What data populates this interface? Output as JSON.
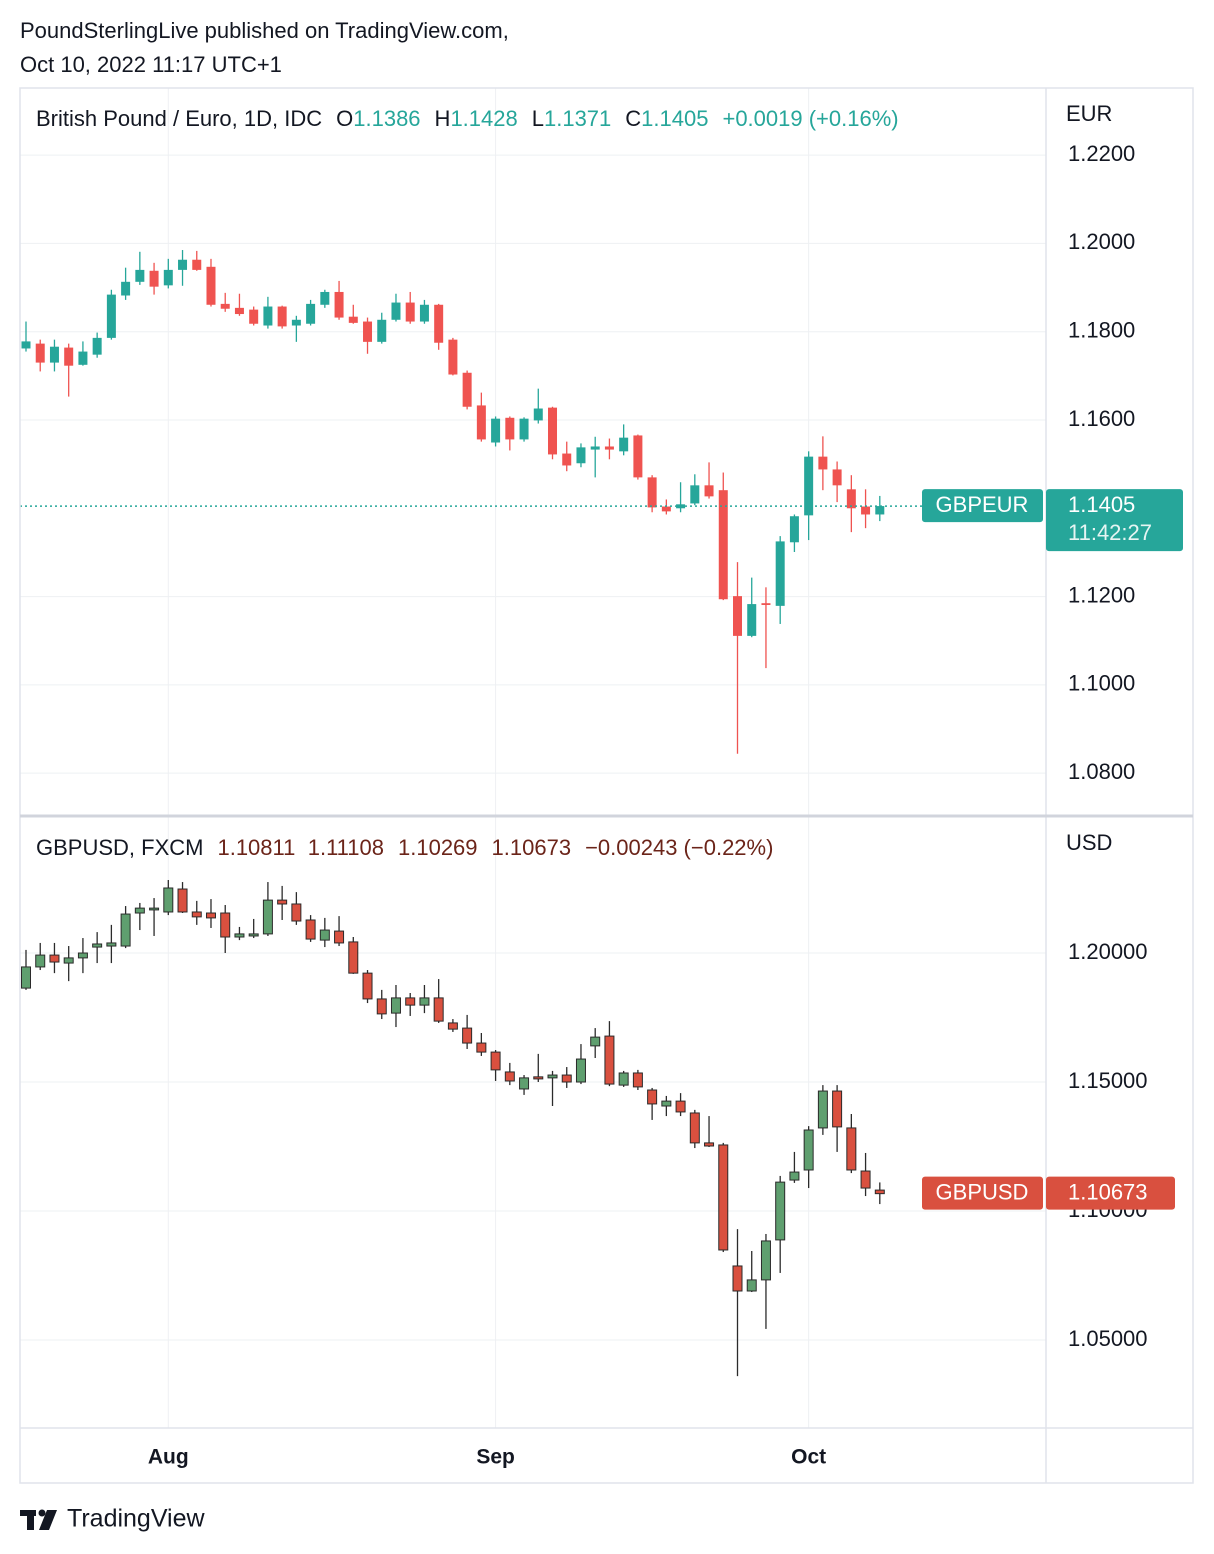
{
  "header": {
    "line1": "PoundSterlingLive published on TradingView.com,",
    "line2": "Oct 10, 2022 11:17 UTC+1"
  },
  "chart_data": [
    {
      "type": "candlestick",
      "title": "British Pound / Euro, 1D, IDC",
      "ohlc_labels": [
        "O",
        "H",
        "L",
        "C"
      ],
      "change": "+0.0019 (+0.16%)",
      "currency": "EUR",
      "symbol": "GBPEUR",
      "countdown": "11:42:27",
      "price_line": true,
      "up_color": "#26a69a",
      "down_color": "#ef5350",
      "legend_color": "#26a69a",
      "grid": true,
      "categories": [
        null,
        null,
        null,
        null,
        null,
        null,
        null,
        null,
        null,
        null,
        "Aug",
        null,
        null,
        null,
        null,
        null,
        null,
        null,
        null,
        null,
        null,
        null,
        null,
        null,
        null,
        null,
        null,
        null,
        null,
        null,
        null,
        null,
        null,
        "Sep",
        null,
        null,
        null,
        null,
        null,
        null,
        null,
        null,
        null,
        null,
        null,
        null,
        null,
        null,
        null,
        null,
        null,
        null,
        null,
        null,
        null,
        "Oct",
        null,
        null,
        null,
        null,
        null
      ],
      "open": [
        1.1762,
        1.1773,
        1.173,
        1.1764,
        1.1725,
        1.1748,
        1.1786,
        1.1882,
        1.1913,
        1.1938,
        1.1905,
        1.194,
        1.1963,
        1.1947,
        1.1863,
        1.1854,
        1.185,
        1.1814,
        1.1857,
        1.1814,
        1.1818,
        1.1861,
        1.189,
        1.1834,
        1.1823,
        1.1777,
        1.1827,
        1.1866,
        1.1823,
        1.1861,
        1.1782,
        1.1707,
        1.1633,
        1.1549,
        1.1605,
        1.1556,
        1.1599,
        1.1628,
        1.1524,
        1.1502,
        1.1533,
        1.154,
        1.1529,
        1.1565,
        1.147,
        1.1404,
        1.14,
        1.1411,
        1.1452,
        1.1441,
        1.1201,
        1.1111,
        1.1185,
        1.1179,
        1.1323,
        1.1384,
        1.1517,
        1.1488,
        1.1443,
        1.1404,
        1.1386
      ],
      "high": [
        1.1823,
        1.1782,
        1.1782,
        1.1773,
        1.1778,
        1.1798,
        1.1895,
        1.1945,
        1.1981,
        1.1956,
        1.1965,
        1.1985,
        1.1983,
        1.1965,
        1.1888,
        1.1886,
        1.1857,
        1.1879,
        1.1859,
        1.1836,
        1.1872,
        1.1895,
        1.1915,
        1.1861,
        1.1832,
        1.1843,
        1.1886,
        1.189,
        1.1872,
        1.1863,
        1.1786,
        1.1712,
        1.1662,
        1.1608,
        1.1608,
        1.1606,
        1.1671,
        1.163,
        1.1551,
        1.1547,
        1.1562,
        1.1558,
        1.159,
        1.1567,
        1.1475,
        1.142,
        1.1459,
        1.1477,
        1.1504,
        1.1481,
        1.1278,
        1.1243,
        1.1221,
        1.1337,
        1.1386,
        1.1529,
        1.1563,
        1.1506,
        1.1475,
        1.1443,
        1.1428
      ],
      "low": [
        1.1755,
        1.171,
        1.171,
        1.1653,
        1.1723,
        1.1741,
        1.1782,
        1.1872,
        1.1906,
        1.1884,
        1.1898,
        1.1904,
        1.1938,
        1.1857,
        1.1845,
        1.1836,
        1.1814,
        1.1807,
        1.1807,
        1.1777,
        1.1814,
        1.1854,
        1.1827,
        1.1818,
        1.175,
        1.1773,
        1.1823,
        1.1818,
        1.1818,
        1.1759,
        1.1701,
        1.1624,
        1.1551,
        1.154,
        1.1531,
        1.1551,
        1.1592,
        1.1511,
        1.1484,
        1.1493,
        1.147,
        1.1511,
        1.152,
        1.1465,
        1.1391,
        1.1386,
        1.1391,
        1.1407,
        1.1422,
        1.1192,
        1.0844,
        1.1108,
        1.1038,
        1.1138,
        1.1301,
        1.1328,
        1.1441,
        1.1414,
        1.1346,
        1.1355,
        1.1371
      ],
      "close": [
        1.1778,
        1.173,
        1.1766,
        1.1723,
        1.1755,
        1.1786,
        1.1884,
        1.1913,
        1.194,
        1.1902,
        1.194,
        1.1963,
        1.194,
        1.1861,
        1.1852,
        1.184,
        1.1818,
        1.1857,
        1.1812,
        1.1827,
        1.1863,
        1.189,
        1.1832,
        1.182,
        1.1777,
        1.1827,
        1.1866,
        1.1823,
        1.1861,
        1.1775,
        1.1703,
        1.163,
        1.1556,
        1.1603,
        1.1556,
        1.1603,
        1.1626,
        1.1522,
        1.1497,
        1.1538,
        1.154,
        1.1533,
        1.156,
        1.147,
        1.1402,
        1.1393,
        1.1409,
        1.1452,
        1.1427,
        1.1194,
        1.1111,
        1.1183,
        1.1181,
        1.1325,
        1.1382,
        1.1517,
        1.1488,
        1.1452,
        1.14,
        1.1386,
        1.1405
      ],
      "ylim": [
        1.0703,
        1.2352
      ],
      "yticks": [
        {
          "value": 1.08,
          "label": "1.0800"
        },
        {
          "value": 1.1,
          "label": "1.1000"
        },
        {
          "value": 1.12,
          "label": "1.1200"
        },
        {
          "value": 1.16,
          "label": "1.1600"
        },
        {
          "value": 1.18,
          "label": "1.1800"
        },
        {
          "value": 1.2,
          "label": "1.2000"
        },
        {
          "value": 1.22,
          "label": "1.2200"
        }
      ]
    },
    {
      "type": "candlestick",
      "title": "GBPUSD, FXCM",
      "change": "−0.00243 (−0.22%)",
      "currency": "USD",
      "symbol": "GBPUSD",
      "up_color": "#5f9f6f",
      "down_color": "#d9503f",
      "border_color": "#2b2b2b",
      "legend_color": "#6b2419",
      "grid": true,
      "categories": [
        null,
        null,
        null,
        null,
        null,
        null,
        null,
        null,
        null,
        null,
        "Aug",
        null,
        null,
        null,
        null,
        null,
        null,
        null,
        null,
        null,
        null,
        null,
        null,
        null,
        null,
        null,
        null,
        null,
        null,
        null,
        null,
        null,
        null,
        "Sep",
        null,
        null,
        null,
        null,
        null,
        null,
        null,
        null,
        null,
        null,
        null,
        null,
        null,
        null,
        null,
        null,
        null,
        null,
        null,
        null,
        null,
        "Oct",
        null,
        null,
        null,
        null,
        null
      ],
      "open": [
        1.1864,
        1.1946,
        1.1992,
        1.1961,
        1.1981,
        1.2023,
        1.2027,
        1.2027,
        1.2155,
        1.2167,
        1.2159,
        1.2248,
        1.2159,
        1.2155,
        1.2155,
        1.2062,
        1.2066,
        1.2074,
        1.2205,
        1.219,
        1.2128,
        1.205,
        1.2085,
        1.2043,
        1.1922,
        1.1822,
        1.1767,
        1.1826,
        1.1798,
        1.1826,
        1.1729,
        1.1709,
        1.1651,
        1.1616,
        1.1539,
        1.1473,
        1.152,
        1.1516,
        1.1527,
        1.15,
        1.164,
        1.1678,
        1.1488,
        1.1535,
        1.1469,
        1.1407,
        1.1426,
        1.138,
        1.1264,
        1.1256,
        1.0787,
        1.069,
        1.0733,
        1.0888,
        1.112,
        1.1159,
        1.1322,
        1.1465,
        1.1322,
        1.1155,
        1.10811
      ],
      "high": [
        1.2012,
        1.2039,
        1.2039,
        1.2027,
        1.2058,
        1.2081,
        1.2109,
        1.2182,
        1.2194,
        1.2213,
        1.2283,
        1.2275,
        1.2202,
        1.2209,
        1.2186,
        1.2101,
        1.2132,
        1.2275,
        1.226,
        1.2236,
        1.2147,
        1.2136,
        1.2143,
        1.2062,
        1.1934,
        1.1857,
        1.1876,
        1.1845,
        1.1876,
        1.1899,
        1.1744,
        1.176,
        1.169,
        1.1624,
        1.1574,
        1.1527,
        1.1609,
        1.1543,
        1.1558,
        1.1647,
        1.1709,
        1.1736,
        1.1543,
        1.1547,
        1.1477,
        1.1446,
        1.1457,
        1.1392,
        1.1368,
        1.1264,
        1.093,
        1.0845,
        1.0911,
        1.1136,
        1.1229,
        1.1329,
        1.1488,
        1.1488,
        1.1376,
        1.1225,
        1.11108
      ],
      "low": [
        1.1857,
        1.1934,
        1.1922,
        1.1891,
        1.1922,
        1.1961,
        1.1961,
        1.2019,
        1.2089,
        1.2066,
        1.2147,
        1.2155,
        1.2109,
        1.2097,
        1.2,
        1.205,
        1.2058,
        1.2066,
        1.2128,
        1.2109,
        1.2043,
        1.2023,
        1.2027,
        1.1919,
        1.1806,
        1.1744,
        1.1713,
        1.1756,
        1.1767,
        1.1729,
        1.1694,
        1.1628,
        1.1601,
        1.1504,
        1.1488,
        1.145,
        1.15,
        1.1407,
        1.1477,
        1.1492,
        1.1593,
        1.1484,
        1.1481,
        1.1469,
        1.1353,
        1.1368,
        1.1368,
        1.1244,
        1.1248,
        1.0841,
        1.036,
        1.0686,
        1.0543,
        1.076,
        1.1109,
        1.1089,
        1.1295,
        1.1229,
        1.1147,
        1.1058,
        1.10269
      ],
      "close": [
        1.1946,
        1.1992,
        1.1965,
        1.1981,
        1.2,
        1.2035,
        1.2039,
        1.2151,
        1.2174,
        1.2174,
        1.2252,
        1.2159,
        1.214,
        1.2136,
        1.2062,
        1.2074,
        1.2074,
        1.2205,
        1.219,
        1.2124,
        1.2054,
        1.2089,
        1.2039,
        1.1922,
        1.1822,
        1.1764,
        1.1826,
        1.1798,
        1.1826,
        1.1736,
        1.1705,
        1.1651,
        1.1616,
        1.1547,
        1.1504,
        1.1516,
        1.1512,
        1.1527,
        1.15,
        1.1589,
        1.1674,
        1.1492,
        1.1535,
        1.1481,
        1.1415,
        1.1426,
        1.1384,
        1.1264,
        1.1252,
        1.0849,
        1.069,
        1.0733,
        1.0884,
        1.1112,
        1.1151,
        1.1314,
        1.1465,
        1.1326,
        1.1159,
        1.1089,
        1.10673
      ],
      "ylim": [
        1.0159,
        1.2531
      ],
      "yticks": [
        {
          "value": 1.05,
          "label": "1.05000"
        },
        {
          "value": 1.1,
          "label": "1.10000"
        },
        {
          "value": 1.15,
          "label": "1.15000"
        },
        {
          "value": 1.2,
          "label": "1.20000"
        }
      ]
    }
  ],
  "footer": {
    "brand": "TradingView"
  }
}
